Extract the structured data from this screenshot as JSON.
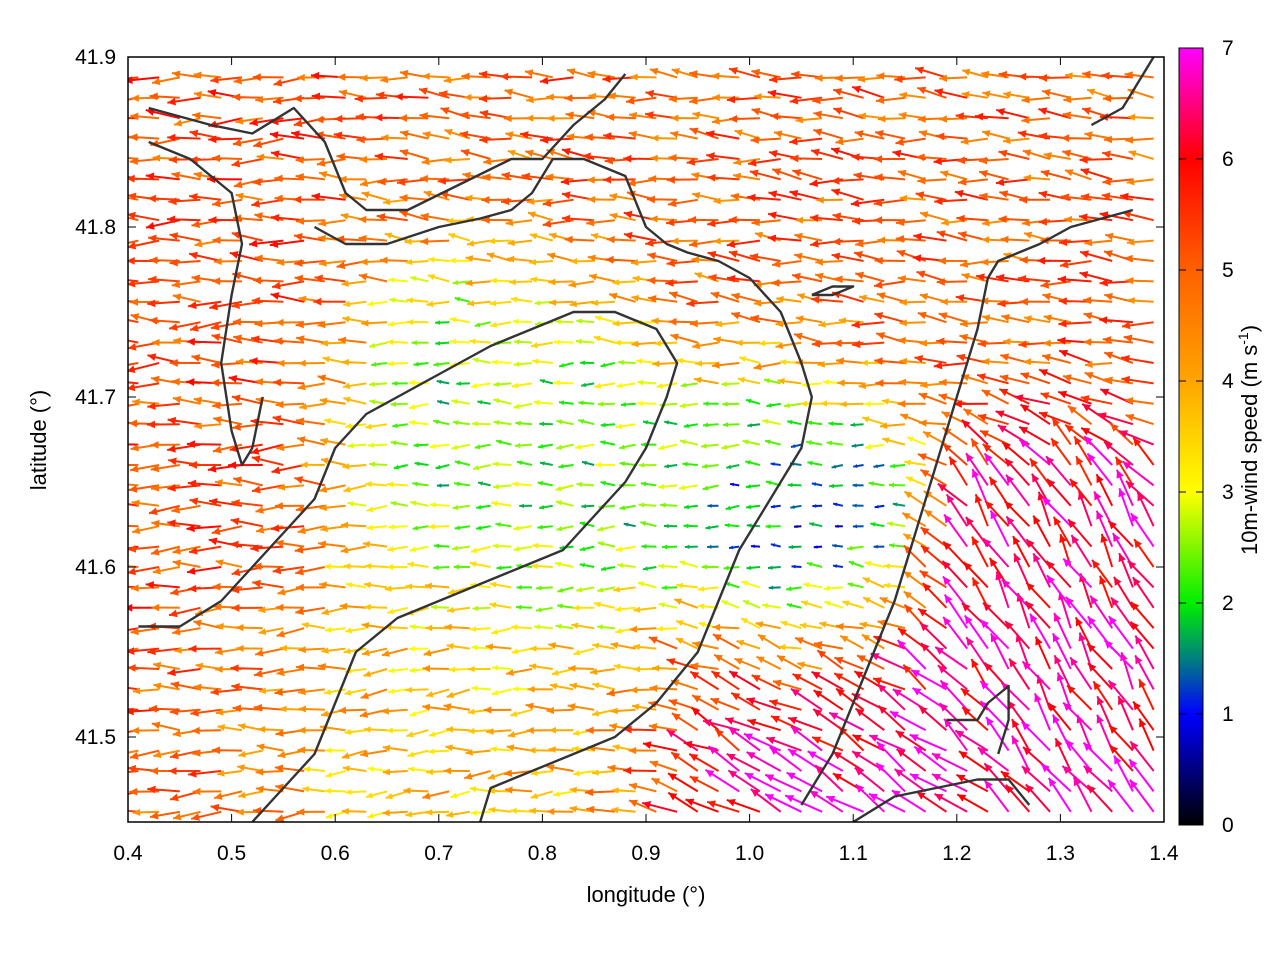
{
  "chart_data": {
    "type": "vector-field",
    "xlabel": "longitude (°)",
    "ylabel": "latitude (°)",
    "xlim": [
      0.4,
      1.4
    ],
    "ylim": [
      41.45,
      41.9
    ],
    "x_ticks": [
      "0.4",
      "0.5",
      "0.6",
      "0.7",
      "0.8",
      "0.9",
      "1.0",
      "1.1",
      "1.2",
      "1.3",
      "1.4"
    ],
    "y_ticks": [
      "41.5",
      "41.6",
      "41.7",
      "41.8",
      "41.9"
    ],
    "colorbar": {
      "label": "10m-wind speed (m s",
      "label_exponent": "-1",
      "label_close": ")",
      "range": [
        0,
        7
      ],
      "ticks": [
        "0",
        "1",
        "2",
        "3",
        "4",
        "5",
        "6",
        "7"
      ],
      "stops": [
        {
          "value": 0,
          "color": "#000000"
        },
        {
          "value": 1,
          "color": "#0000ff"
        },
        {
          "value": 1.5,
          "color": "#008080"
        },
        {
          "value": 2,
          "color": "#00ee00"
        },
        {
          "value": 3,
          "color": "#ffff00"
        },
        {
          "value": 4,
          "color": "#ffa500"
        },
        {
          "value": 5,
          "color": "#ff6000"
        },
        {
          "value": 6,
          "color": "#ff0000"
        },
        {
          "value": 7,
          "color": "#ff00ff"
        }
      ]
    },
    "wind_field": {
      "grid_spacing_deg": [
        0.02,
        0.012
      ],
      "regimes": [
        {
          "region": "west",
          "lon": [
            0.4,
            0.55
          ],
          "lat": [
            41.45,
            41.9
          ],
          "speed": 5.2,
          "direction_deg": 180
        },
        {
          "region": "north-east",
          "lon": [
            0.88,
            1.4
          ],
          "lat": [
            41.72,
            41.9
          ],
          "speed": 5.0,
          "direction_deg": 175
        },
        {
          "region": "centre",
          "lon": [
            0.7,
            0.95
          ],
          "lat": [
            41.58,
            41.72
          ],
          "speed": 2.2,
          "direction_deg": 180
        },
        {
          "region": "east-centre",
          "lon": [
            1.0,
            1.12
          ],
          "lat": [
            41.55,
            41.68
          ],
          "speed": 1.0,
          "direction_deg": 180
        },
        {
          "region": "south-east-gust",
          "lon": [
            0.95,
            1.2
          ],
          "lat": [
            41.45,
            41.56
          ],
          "speed": 6.8,
          "direction_deg": 145
        },
        {
          "region": "east-gust",
          "lon": [
            1.22,
            1.35
          ],
          "lat": [
            41.52,
            41.64
          ],
          "speed": 6.5,
          "direction_deg": 120
        },
        {
          "region": "south-west",
          "lon": [
            0.55,
            0.9
          ],
          "lat": [
            41.45,
            41.58
          ],
          "speed": 3.8,
          "direction_deg": 185
        }
      ]
    },
    "contours": [
      [
        [
          0.42,
          41.87
        ],
        [
          0.48,
          41.86
        ],
        [
          0.52,
          41.855
        ],
        [
          0.56,
          41.87
        ],
        [
          0.59,
          41.85
        ],
        [
          0.61,
          41.82
        ],
        [
          0.63,
          41.81
        ],
        [
          0.67,
          41.81
        ],
        [
          0.72,
          41.825
        ],
        [
          0.77,
          41.84
        ],
        [
          0.8,
          41.84
        ],
        [
          0.83,
          41.86
        ],
        [
          0.86,
          41.875
        ],
        [
          0.88,
          41.89
        ]
      ],
      [
        [
          0.42,
          41.85
        ],
        [
          0.46,
          41.84
        ],
        [
          0.5,
          41.82
        ],
        [
          0.51,
          41.79
        ],
        [
          0.5,
          41.76
        ],
        [
          0.49,
          41.72
        ],
        [
          0.5,
          41.68
        ],
        [
          0.51,
          41.66
        ],
        [
          0.52,
          41.67
        ],
        [
          0.53,
          41.7
        ]
      ],
      [
        [
          0.58,
          41.8
        ],
        [
          0.61,
          41.79
        ],
        [
          0.65,
          41.79
        ],
        [
          0.7,
          41.8
        ],
        [
          0.74,
          41.805
        ],
        [
          0.77,
          41.81
        ],
        [
          0.79,
          41.82
        ],
        [
          0.81,
          41.84
        ],
        [
          0.84,
          41.84
        ],
        [
          0.88,
          41.83
        ],
        [
          0.9,
          41.8
        ],
        [
          0.92,
          41.79
        ],
        [
          0.94,
          41.785
        ],
        [
          0.97,
          41.78
        ],
        [
          1.0,
          41.77
        ],
        [
          1.03,
          41.75
        ],
        [
          1.05,
          41.72
        ],
        [
          1.06,
          41.7
        ],
        [
          1.05,
          41.67
        ],
        [
          1.03,
          41.65
        ],
        [
          1.01,
          41.63
        ],
        [
          0.99,
          41.61
        ],
        [
          0.97,
          41.58
        ],
        [
          0.95,
          41.55
        ],
        [
          0.91,
          41.52
        ],
        [
          0.87,
          41.5
        ],
        [
          0.83,
          41.49
        ],
        [
          0.79,
          41.48
        ],
        [
          0.75,
          41.47
        ],
        [
          0.74,
          41.45
        ]
      ],
      [
        [
          0.52,
          41.45
        ],
        [
          0.55,
          41.47
        ],
        [
          0.58,
          41.49
        ],
        [
          0.6,
          41.52
        ],
        [
          0.62,
          41.55
        ],
        [
          0.66,
          41.57
        ],
        [
          0.7,
          41.58
        ],
        [
          0.74,
          41.59
        ],
        [
          0.78,
          41.6
        ],
        [
          0.82,
          41.61
        ],
        [
          0.85,
          41.63
        ],
        [
          0.88,
          41.65
        ],
        [
          0.9,
          41.67
        ],
        [
          0.92,
          41.7
        ],
        [
          0.93,
          41.72
        ],
        [
          0.91,
          41.74
        ],
        [
          0.87,
          41.75
        ],
        [
          0.83,
          41.75
        ],
        [
          0.79,
          41.74
        ],
        [
          0.75,
          41.73
        ],
        [
          0.72,
          41.72
        ],
        [
          0.69,
          41.71
        ],
        [
          0.66,
          41.7
        ],
        [
          0.63,
          41.69
        ],
        [
          0.6,
          41.67
        ],
        [
          0.58,
          41.64
        ],
        [
          0.55,
          41.62
        ],
        [
          0.52,
          41.6
        ],
        [
          0.49,
          41.58
        ],
        [
          0.45,
          41.565
        ],
        [
          0.41,
          41.565
        ]
      ],
      [
        [
          1.05,
          41.46
        ],
        [
          1.08,
          41.49
        ],
        [
          1.1,
          41.52
        ],
        [
          1.12,
          41.55
        ],
        [
          1.14,
          41.58
        ],
        [
          1.16,
          41.62
        ],
        [
          1.18,
          41.66
        ],
        [
          1.2,
          41.7
        ],
        [
          1.22,
          41.74
        ],
        [
          1.23,
          41.77
        ],
        [
          1.24,
          41.78
        ],
        [
          1.28,
          41.79
        ],
        [
          1.31,
          41.8
        ],
        [
          1.34,
          41.805
        ],
        [
          1.37,
          41.81
        ]
      ],
      [
        [
          1.1,
          41.45
        ],
        [
          1.14,
          41.465
        ],
        [
          1.18,
          41.47
        ],
        [
          1.22,
          41.475
        ],
        [
          1.25,
          41.475
        ],
        [
          1.27,
          41.46
        ]
      ],
      [
        [
          1.19,
          41.51
        ],
        [
          1.22,
          41.51
        ],
        [
          1.23,
          41.52
        ],
        [
          1.25,
          41.53
        ],
        [
          1.25,
          41.51
        ],
        [
          1.24,
          41.49
        ]
      ],
      [
        [
          1.33,
          41.86
        ],
        [
          1.36,
          41.87
        ],
        [
          1.38,
          41.89
        ],
        [
          1.39,
          41.9
        ]
      ],
      [
        [
          1.06,
          41.76
        ],
        [
          1.08,
          41.765
        ],
        [
          1.1,
          41.765
        ],
        [
          1.08,
          41.76
        ],
        [
          1.06,
          41.76
        ]
      ]
    ]
  }
}
